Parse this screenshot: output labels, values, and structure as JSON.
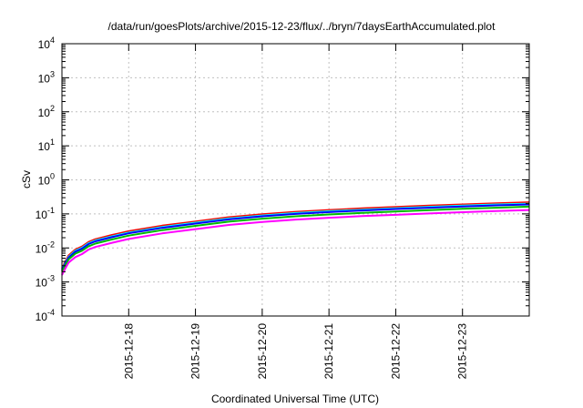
{
  "chart_data": {
    "type": "line",
    "title": "/data/run/goesPlots/archive/2015-12-23/flux/../bryn/7daysEarthAccumulated.plot",
    "xlabel": "Coordinated Universal Time (UTC)",
    "ylabel": "cSv",
    "y_scale": "log",
    "ylim": [
      0.0001,
      10000
    ],
    "y_ticks": [
      {
        "base": "10",
        "exp": "-4"
      },
      {
        "base": "10",
        "exp": "-3"
      },
      {
        "base": "10",
        "exp": "-2"
      },
      {
        "base": "10",
        "exp": "-1"
      },
      {
        "base": "10",
        "exp": "0"
      },
      {
        "base": "10",
        "exp": "1"
      },
      {
        "base": "10",
        "exp": "2"
      },
      {
        "base": "10",
        "exp": "3"
      },
      {
        "base": "10",
        "exp": "4"
      }
    ],
    "xlim": [
      0,
      7
    ],
    "x_ticks": [
      {
        "x": 1,
        "label": "2015-12-18"
      },
      {
        "x": 2,
        "label": "2015-12-19"
      },
      {
        "x": 3,
        "label": "2015-12-20"
      },
      {
        "x": 4,
        "label": "2015-12-21"
      },
      {
        "x": 5,
        "label": "2015-12-22"
      },
      {
        "x": 6,
        "label": "2015-12-23"
      }
    ],
    "grid": true,
    "x": [
      0,
      0.05,
      0.1,
      0.2,
      0.3,
      0.4,
      0.5,
      0.75,
      1.0,
      1.5,
      2.0,
      2.5,
      3.0,
      3.5,
      4.0,
      4.5,
      5.0,
      5.5,
      6.0,
      6.5,
      7.0
    ],
    "series": [
      {
        "color": "#ff0000",
        "values": [
          0.0025,
          0.004,
          0.006,
          0.009,
          0.011,
          0.015,
          0.018,
          0.024,
          0.031,
          0.045,
          0.06,
          0.08,
          0.098,
          0.115,
          0.13,
          0.145,
          0.16,
          0.175,
          0.19,
          0.205,
          0.22
        ]
      },
      {
        "color": "#00ffff",
        "values": [
          0.0023,
          0.0037,
          0.0055,
          0.0083,
          0.0101,
          0.0138,
          0.0166,
          0.022,
          0.0285,
          0.0414,
          0.0552,
          0.0736,
          0.09,
          0.106,
          0.12,
          0.133,
          0.147,
          0.161,
          0.175,
          0.189,
          0.2
        ]
      },
      {
        "color": "#0000ff",
        "values": [
          0.0022,
          0.0035,
          0.0052,
          0.0078,
          0.0095,
          0.013,
          0.0156,
          0.0208,
          0.0268,
          0.039,
          0.052,
          0.069,
          0.085,
          0.1,
          0.113,
          0.126,
          0.139,
          0.152,
          0.165,
          0.178,
          0.19
        ]
      },
      {
        "color": "#00bb00",
        "values": [
          0.002,
          0.0031,
          0.0046,
          0.0068,
          0.0083,
          0.0112,
          0.0134,
          0.0178,
          0.023,
          0.0334,
          0.0445,
          0.0593,
          0.0726,
          0.0852,
          0.0963,
          0.107,
          0.118,
          0.129,
          0.141,
          0.152,
          0.163
        ]
      },
      {
        "color": "#ff00ff",
        "values": [
          0.0016,
          0.0025,
          0.0037,
          0.0054,
          0.0066,
          0.009,
          0.0107,
          0.0142,
          0.0184,
          0.0267,
          0.0356,
          0.0474,
          0.058,
          0.068,
          0.077,
          0.086,
          0.094,
          0.103,
          0.112,
          0.121,
          0.13
        ]
      }
    ]
  }
}
